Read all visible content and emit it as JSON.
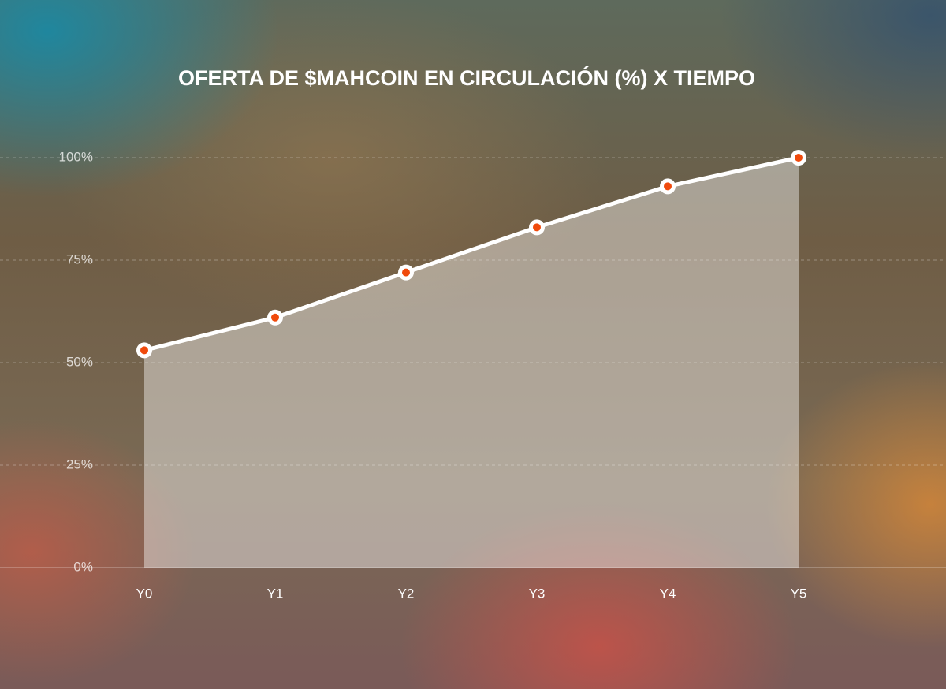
{
  "chart_data": {
    "type": "line",
    "title": "OFERTA DE $MAHCOIN EN CIRCULACIÓN (%) X TIEMPO",
    "categories": [
      "Y0",
      "Y1",
      "Y2",
      "Y3",
      "Y4",
      "Y5"
    ],
    "values": [
      53,
      61,
      72,
      83,
      93,
      100
    ],
    "color": "#ffffff",
    "marker_color": "#f04a0c",
    "ylim": [
      0,
      100
    ],
    "yticks": [
      {
        "value": 0,
        "label": "0%"
      },
      {
        "value": 25,
        "label": "25%"
      },
      {
        "value": 50,
        "label": "50%"
      },
      {
        "value": 75,
        "label": "75%"
      },
      {
        "value": 100,
        "label": "100%"
      }
    ],
    "grid": true
  }
}
